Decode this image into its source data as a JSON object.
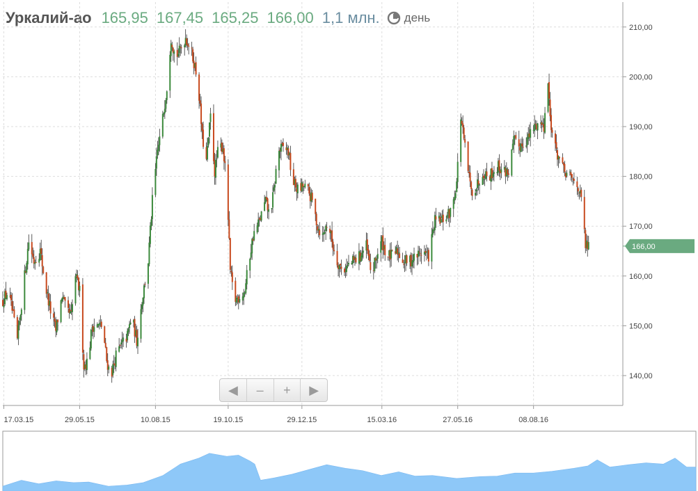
{
  "header": {
    "ticker": "Уркалий-ао",
    "open": "165,95",
    "high": "167,45",
    "low": "165,25",
    "close": "166,00",
    "volume": "1,1 млн.",
    "period_label": "день",
    "period_icon": "clock-icon"
  },
  "zoom_controls": {
    "scroll_left_label": "◀",
    "zoom_out_label": "–",
    "zoom_in_label": "+",
    "scroll_right_label": "▶"
  },
  "colors": {
    "up_candle": "#3c8a3c",
    "down_candle": "#c84a1e",
    "last_price_tag": "#6aaa80",
    "volume_fill": "#8ec8f8",
    "ohlc_text": "#6aaa80",
    "volume_text": "#6a8da0"
  },
  "chart_data": {
    "type": "candlestick",
    "title": "",
    "xlabel": "",
    "ylabel": "",
    "ylim": [
      134,
      215
    ],
    "y_ticks": [
      140,
      150,
      160,
      170,
      180,
      190,
      200,
      210
    ],
    "y_tick_labels": [
      "140,00",
      "150,00",
      "160,00",
      "170,00",
      "180,00",
      "190,00",
      "200,00",
      "210,00"
    ],
    "x_range": [
      "2015-03-16",
      "2016-11-02"
    ],
    "x_ticks": [
      "2015-03-17",
      "2015-05-29",
      "2015-08-10",
      "2015-10-19",
      "2015-12-29",
      "2016-03-15",
      "2016-05-27",
      "2016-08-08"
    ],
    "x_tick_labels": [
      "17.03.15",
      "29.05.15",
      "10.08.15",
      "19.10.15",
      "29.12.15",
      "15.03.16",
      "27.05.16",
      "08.08.16"
    ],
    "grid": true,
    "last_price": 166.0,
    "last_price_label": "166,00",
    "price_path": [
      [
        "2015-03-16",
        155
      ],
      [
        "2015-03-21",
        157
      ],
      [
        "2015-03-25",
        153
      ],
      [
        "2015-03-30",
        147
      ],
      [
        "2015-04-06",
        160
      ],
      [
        "2015-04-10",
        167
      ],
      [
        "2015-04-15",
        163
      ],
      [
        "2015-04-21",
        165
      ],
      [
        "2015-04-27",
        157
      ],
      [
        "2015-05-01",
        153
      ],
      [
        "2015-05-06",
        149
      ],
      [
        "2015-05-12",
        156
      ],
      [
        "2015-05-16",
        153
      ],
      [
        "2015-05-21",
        152
      ],
      [
        "2015-05-25",
        160
      ],
      [
        "2015-05-29",
        157
      ],
      [
        "2015-06-02",
        142
      ],
      [
        "2015-06-06",
        143
      ],
      [
        "2015-06-10",
        150
      ],
      [
        "2015-06-16",
        150
      ],
      [
        "2015-06-20",
        150
      ],
      [
        "2015-06-24",
        143
      ],
      [
        "2015-06-28",
        140
      ],
      [
        "2015-07-03",
        144
      ],
      [
        "2015-07-08",
        146
      ],
      [
        "2015-07-14",
        148
      ],
      [
        "2015-07-18",
        152
      ],
      [
        "2015-07-23",
        147
      ],
      [
        "2015-07-28",
        155
      ],
      [
        "2015-08-03",
        163
      ],
      [
        "2015-08-07",
        175
      ],
      [
        "2015-08-12",
        185
      ],
      [
        "2015-08-16",
        190
      ],
      [
        "2015-08-21",
        198
      ],
      [
        "2015-08-25",
        208
      ],
      [
        "2015-08-29",
        204
      ],
      [
        "2015-09-02",
        205
      ],
      [
        "2015-09-08",
        208
      ],
      [
        "2015-09-12",
        206
      ],
      [
        "2015-09-16",
        203
      ],
      [
        "2015-09-20",
        199
      ],
      [
        "2015-09-24",
        188
      ],
      [
        "2015-09-28",
        183
      ],
      [
        "2015-10-02",
        192
      ],
      [
        "2015-10-06",
        181
      ],
      [
        "2015-10-10",
        186
      ],
      [
        "2015-10-14",
        186
      ],
      [
        "2015-10-18",
        177
      ],
      [
        "2015-10-21",
        161
      ],
      [
        "2015-10-25",
        155
      ],
      [
        "2015-10-30",
        156
      ],
      [
        "2015-11-04",
        157
      ],
      [
        "2015-11-08",
        163
      ],
      [
        "2015-11-12",
        168
      ],
      [
        "2015-11-18",
        171
      ],
      [
        "2015-11-24",
        175
      ],
      [
        "2015-11-28",
        172
      ],
      [
        "2015-12-02",
        177
      ],
      [
        "2015-12-06",
        185
      ],
      [
        "2015-12-12",
        186
      ],
      [
        "2015-12-16",
        185
      ],
      [
        "2015-12-20",
        179
      ],
      [
        "2015-12-26",
        177
      ],
      [
        "2015-12-30",
        178
      ],
      [
        "2016-01-04",
        177
      ],
      [
        "2016-01-08",
        175
      ],
      [
        "2016-01-13",
        170
      ],
      [
        "2016-01-18",
        168
      ],
      [
        "2016-01-23",
        171
      ],
      [
        "2016-01-28",
        166
      ],
      [
        "2016-02-01",
        163
      ],
      [
        "2016-02-06",
        161
      ],
      [
        "2016-02-11",
        162
      ],
      [
        "2016-02-17",
        163
      ],
      [
        "2016-02-23",
        164
      ],
      [
        "2016-02-29",
        166
      ],
      [
        "2016-03-05",
        160
      ],
      [
        "2016-03-10",
        164
      ],
      [
        "2016-03-15",
        167
      ],
      [
        "2016-03-20",
        164
      ],
      [
        "2016-03-25",
        164
      ],
      [
        "2016-03-30",
        165
      ],
      [
        "2016-04-05",
        163
      ],
      [
        "2016-04-11",
        163
      ],
      [
        "2016-04-17",
        164
      ],
      [
        "2016-04-23",
        165
      ],
      [
        "2016-04-29",
        164
      ],
      [
        "2016-05-05",
        171
      ],
      [
        "2016-05-11",
        171
      ],
      [
        "2016-05-16",
        172
      ],
      [
        "2016-05-21",
        173
      ],
      [
        "2016-05-26",
        179
      ],
      [
        "2016-05-30",
        192
      ],
      [
        "2016-06-04",
        184
      ],
      [
        "2016-06-09",
        177
      ],
      [
        "2016-06-14",
        178
      ],
      [
        "2016-06-20",
        181
      ],
      [
        "2016-06-25",
        180
      ],
      [
        "2016-06-30",
        181
      ],
      [
        "2016-07-05",
        182
      ],
      [
        "2016-07-10",
        181
      ],
      [
        "2016-07-15",
        181
      ],
      [
        "2016-07-20",
        187
      ],
      [
        "2016-07-25",
        186
      ],
      [
        "2016-07-30",
        187
      ],
      [
        "2016-08-04",
        188
      ],
      [
        "2016-08-09",
        190
      ],
      [
        "2016-08-14",
        191
      ],
      [
        "2016-08-18",
        190
      ],
      [
        "2016-08-21",
        202
      ],
      [
        "2016-08-24",
        192
      ],
      [
        "2016-08-28",
        186
      ],
      [
        "2016-09-01",
        184
      ],
      [
        "2016-09-06",
        181
      ],
      [
        "2016-09-11",
        180
      ],
      [
        "2016-09-16",
        179
      ],
      [
        "2016-09-20",
        178
      ],
      [
        "2016-09-24",
        174
      ],
      [
        "2016-09-27",
        166
      ],
      [
        "2016-10-01",
        166
      ]
    ],
    "volume_profile": [
      [
        "2015-03-16",
        0.08
      ],
      [
        "2015-04-01",
        0.18
      ],
      [
        "2015-04-16",
        0.12
      ],
      [
        "2015-05-01",
        0.17
      ],
      [
        "2015-05-16",
        0.14
      ],
      [
        "2015-05-29",
        0.15
      ],
      [
        "2015-06-15",
        0.08
      ],
      [
        "2015-07-01",
        0.1
      ],
      [
        "2015-07-15",
        0.14
      ],
      [
        "2015-08-01",
        0.26
      ],
      [
        "2015-08-16",
        0.45
      ],
      [
        "2015-09-01",
        0.55
      ],
      [
        "2015-09-10",
        0.63
      ],
      [
        "2015-09-25",
        0.58
      ],
      [
        "2015-10-05",
        0.6
      ],
      [
        "2015-10-15",
        0.5
      ],
      [
        "2015-10-19",
        0.45
      ],
      [
        "2015-10-24",
        0.18
      ],
      [
        "2015-11-05",
        0.22
      ],
      [
        "2015-11-20",
        0.28
      ],
      [
        "2015-12-05",
        0.36
      ],
      [
        "2015-12-20",
        0.44
      ],
      [
        "2016-01-05",
        0.38
      ],
      [
        "2016-01-20",
        0.34
      ],
      [
        "2016-02-05",
        0.26
      ],
      [
        "2016-02-20",
        0.32
      ],
      [
        "2016-03-05",
        0.25
      ],
      [
        "2016-03-20",
        0.26
      ],
      [
        "2016-04-10",
        0.21
      ],
      [
        "2016-04-30",
        0.24
      ],
      [
        "2016-05-15",
        0.25
      ],
      [
        "2016-05-30",
        0.3
      ],
      [
        "2016-06-15",
        0.3
      ],
      [
        "2016-07-01",
        0.33
      ],
      [
        "2016-07-20",
        0.38
      ],
      [
        "2016-08-01",
        0.42
      ],
      [
        "2016-08-09",
        0.52
      ],
      [
        "2016-08-20",
        0.4
      ],
      [
        "2016-09-05",
        0.44
      ],
      [
        "2016-09-20",
        0.47
      ],
      [
        "2016-10-05",
        0.45
      ],
      [
        "2016-10-15",
        0.55
      ],
      [
        "2016-10-25",
        0.4
      ],
      [
        "2016-11-02",
        0.4
      ]
    ]
  }
}
